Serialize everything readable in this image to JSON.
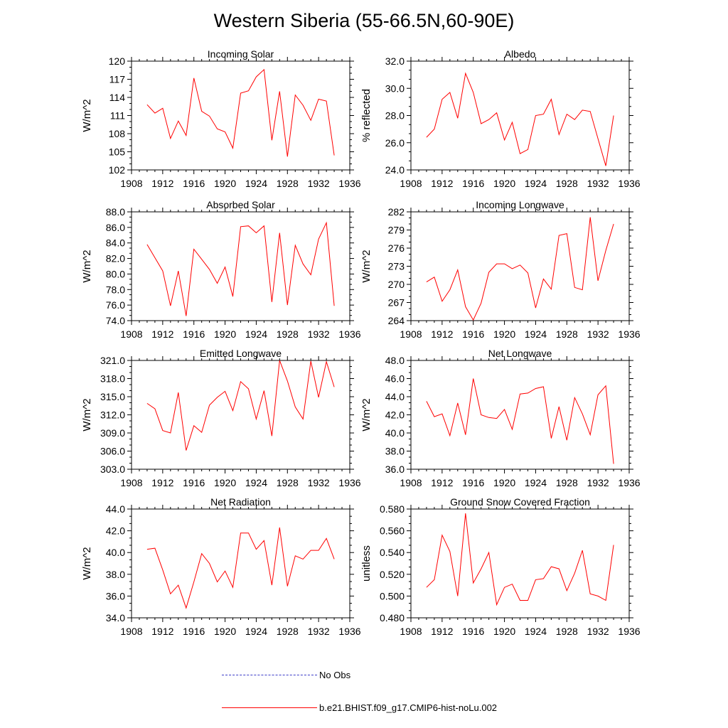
{
  "title": "Western Siberia (55-66.5N,60-90E)",
  "colors": {
    "model": "#ff0000",
    "obs": "#3c3cc8",
    "axis": "#000000"
  },
  "legend": [
    {
      "label": "No Obs",
      "style": "dashed",
      "color": "#3c3cc8"
    },
    {
      "label": "b.e21.BHIST.f09_g17.CMIP6-hist-noLu.002",
      "style": "solid",
      "color": "#ff0000"
    }
  ],
  "chart_data": [
    {
      "type": "line",
      "title": "Incoming Solar",
      "ylabel": "W/m^2",
      "xlim": [
        1908,
        1936
      ],
      "ylim": [
        102,
        120
      ],
      "yticks": [
        "102",
        "105",
        "108",
        "111",
        "114",
        "117",
        "120"
      ],
      "xticks": [
        "1908",
        "1912",
        "1916",
        "1920",
        "1924",
        "1928",
        "1932",
        "1936"
      ],
      "x": [
        1910,
        1911,
        1912,
        1913,
        1914,
        1915,
        1916,
        1917,
        1918,
        1919,
        1920,
        1921,
        1922,
        1923,
        1924,
        1925,
        1926,
        1927,
        1928,
        1929,
        1930,
        1931,
        1932,
        1933,
        1934
      ],
      "series": [
        {
          "values": [
            112.8,
            111.4,
            112.2,
            107.2,
            110.1,
            107.7,
            117.2,
            111.7,
            110.9,
            108.8,
            108.3,
            105.6,
            114.7,
            115.1,
            117.4,
            118.6,
            106.9,
            115.0,
            104.2,
            114.4,
            112.7,
            110.2,
            113.7,
            113.4,
            104.4
          ]
        }
      ]
    },
    {
      "type": "line",
      "title": "Albedo",
      "ylabel": "% reflected",
      "xlim": [
        1908,
        1936
      ],
      "ylim": [
        24.0,
        32.0
      ],
      "yticks": [
        "24.0",
        "26.0",
        "28.0",
        "30.0",
        "32.0"
      ],
      "xticks": [
        "1908",
        "1912",
        "1916",
        "1920",
        "1924",
        "1928",
        "1932",
        "1936"
      ],
      "x": [
        1910,
        1911,
        1912,
        1913,
        1914,
        1915,
        1916,
        1917,
        1918,
        1919,
        1920,
        1921,
        1922,
        1923,
        1924,
        1925,
        1926,
        1927,
        1928,
        1929,
        1930,
        1931,
        1932,
        1933,
        1934
      ],
      "series": [
        {
          "values": [
            26.4,
            27.0,
            29.2,
            29.7,
            27.8,
            31.1,
            29.7,
            27.4,
            27.7,
            28.2,
            26.2,
            27.5,
            25.2,
            25.5,
            28.0,
            28.1,
            29.2,
            26.6,
            28.1,
            27.7,
            28.4,
            28.3,
            26.3,
            24.3,
            28.0
          ]
        }
      ]
    },
    {
      "type": "line",
      "title": "Absorbed Solar",
      "ylabel": "W/m^2",
      "xlim": [
        1908,
        1936
      ],
      "ylim": [
        74.0,
        88.0
      ],
      "yticks": [
        "74.0",
        "76.0",
        "78.0",
        "80.0",
        "82.0",
        "84.0",
        "86.0",
        "88.0"
      ],
      "xticks": [
        "1908",
        "1912",
        "1916",
        "1920",
        "1924",
        "1928",
        "1932",
        "1936"
      ],
      "x": [
        1910,
        1911,
        1912,
        1913,
        1914,
        1915,
        1916,
        1917,
        1918,
        1919,
        1920,
        1921,
        1922,
        1923,
        1924,
        1925,
        1926,
        1927,
        1928,
        1929,
        1930,
        1931,
        1932,
        1933,
        1934
      ],
      "series": [
        {
          "values": [
            83.8,
            82.1,
            80.4,
            75.9,
            80.4,
            74.6,
            83.2,
            81.9,
            80.6,
            78.8,
            80.9,
            77.1,
            86.1,
            86.2,
            85.3,
            86.2,
            76.4,
            85.3,
            76.0,
            83.7,
            81.3,
            79.9,
            84.5,
            86.6,
            75.9
          ]
        }
      ]
    },
    {
      "type": "line",
      "title": "Incoming Longwave",
      "ylabel": "W/m^2",
      "xlim": [
        1908,
        1936
      ],
      "ylim": [
        264,
        282
      ],
      "yticks": [
        "264",
        "267",
        "270",
        "273",
        "276",
        "279",
        "282"
      ],
      "xticks": [
        "1908",
        "1912",
        "1916",
        "1920",
        "1924",
        "1928",
        "1932",
        "1936"
      ],
      "x": [
        1910,
        1911,
        1912,
        1913,
        1914,
        1915,
        1916,
        1917,
        1918,
        1919,
        1920,
        1921,
        1922,
        1923,
        1924,
        1925,
        1926,
        1927,
        1928,
        1929,
        1930,
        1931,
        1932,
        1933,
        1934
      ],
      "series": [
        {
          "values": [
            270.4,
            271.2,
            267.2,
            269.1,
            272.4,
            266.3,
            264.1,
            266.9,
            272.0,
            273.4,
            273.4,
            272.6,
            273.2,
            271.9,
            266.1,
            270.9,
            269.2,
            278.1,
            278.4,
            269.5,
            269.1,
            281.1,
            270.6,
            275.6,
            280.0
          ]
        }
      ]
    },
    {
      "type": "line",
      "title": "Emitted Longwave",
      "ylabel": "W/m^2",
      "xlim": [
        1908,
        1936
      ],
      "ylim": [
        303.0,
        321.0
      ],
      "yticks": [
        "303.0",
        "306.0",
        "309.0",
        "312.0",
        "315.0",
        "318.0",
        "321.0"
      ],
      "xticks": [
        "1908",
        "1912",
        "1916",
        "1920",
        "1924",
        "1928",
        "1932",
        "1936"
      ],
      "x": [
        1910,
        1911,
        1912,
        1913,
        1914,
        1915,
        1916,
        1917,
        1918,
        1919,
        1920,
        1921,
        1922,
        1923,
        1924,
        1925,
        1926,
        1927,
        1928,
        1929,
        1930,
        1931,
        1932,
        1933,
        1934
      ],
      "series": [
        {
          "values": [
            313.9,
            313.0,
            309.4,
            309.0,
            315.7,
            306.1,
            310.2,
            309.1,
            313.6,
            314.9,
            315.9,
            312.7,
            317.5,
            316.3,
            311.3,
            316.0,
            308.5,
            321.0,
            317.6,
            313.3,
            311.3,
            320.9,
            314.9,
            320.8,
            316.6
          ]
        }
      ]
    },
    {
      "type": "line",
      "title": "Net Longwave",
      "ylabel": "W/m^2",
      "xlim": [
        1908,
        1936
      ],
      "ylim": [
        36.0,
        48.0
      ],
      "yticks": [
        "36.0",
        "38.0",
        "40.0",
        "42.0",
        "44.0",
        "46.0",
        "48.0"
      ],
      "xticks": [
        "1908",
        "1912",
        "1916",
        "1920",
        "1924",
        "1928",
        "1932",
        "1936"
      ],
      "x": [
        1910,
        1911,
        1912,
        1913,
        1914,
        1915,
        1916,
        1917,
        1918,
        1919,
        1920,
        1921,
        1922,
        1923,
        1924,
        1925,
        1926,
        1927,
        1928,
        1929,
        1930,
        1931,
        1932,
        1933,
        1934
      ],
      "series": [
        {
          "values": [
            43.5,
            41.8,
            42.1,
            39.7,
            43.3,
            39.8,
            46.0,
            42.0,
            41.7,
            41.6,
            42.6,
            40.4,
            44.3,
            44.4,
            44.9,
            45.1,
            39.4,
            42.9,
            39.2,
            43.9,
            42.1,
            39.8,
            44.2,
            45.2,
            36.6
          ]
        }
      ]
    },
    {
      "type": "line",
      "title": "Net Radiation",
      "ylabel": "W/m^2",
      "xlim": [
        1908,
        1936
      ],
      "ylim": [
        34.0,
        44.0
      ],
      "yticks": [
        "34.0",
        "36.0",
        "38.0",
        "40.0",
        "42.0",
        "44.0"
      ],
      "xticks": [
        "1908",
        "1912",
        "1916",
        "1920",
        "1924",
        "1928",
        "1932",
        "1936"
      ],
      "x": [
        1910,
        1911,
        1912,
        1913,
        1914,
        1915,
        1916,
        1917,
        1918,
        1919,
        1920,
        1921,
        1922,
        1923,
        1924,
        1925,
        1926,
        1927,
        1928,
        1929,
        1930,
        1931,
        1932,
        1933,
        1934
      ],
      "series": [
        {
          "values": [
            40.3,
            40.4,
            38.4,
            36.2,
            37.0,
            34.9,
            37.3,
            39.9,
            39.0,
            37.3,
            38.3,
            36.8,
            41.8,
            41.8,
            40.3,
            41.1,
            37.0,
            42.3,
            36.9,
            39.7,
            39.4,
            40.2,
            40.2,
            41.3,
            39.4
          ]
        }
      ]
    },
    {
      "type": "line",
      "title": "Ground Snow Covered Fraction",
      "ylabel": "unitless",
      "xlim": [
        1908,
        1936
      ],
      "ylim": [
        0.48,
        0.58
      ],
      "yticks": [
        "0.480",
        "0.500",
        "0.520",
        "0.540",
        "0.560",
        "0.580"
      ],
      "xticks": [
        "1908",
        "1912",
        "1916",
        "1920",
        "1924",
        "1928",
        "1932",
        "1936"
      ],
      "x": [
        1910,
        1911,
        1912,
        1913,
        1914,
        1915,
        1916,
        1917,
        1918,
        1919,
        1920,
        1921,
        1922,
        1923,
        1924,
        1925,
        1926,
        1927,
        1928,
        1929,
        1930,
        1931,
        1932,
        1933,
        1934
      ],
      "series": [
        {
          "values": [
            0.508,
            0.515,
            0.556,
            0.541,
            0.5,
            0.576,
            0.512,
            0.525,
            0.54,
            0.492,
            0.508,
            0.511,
            0.496,
            0.496,
            0.515,
            0.516,
            0.527,
            0.525,
            0.505,
            0.521,
            0.542,
            0.502,
            0.5,
            0.496,
            0.547
          ]
        }
      ]
    }
  ]
}
